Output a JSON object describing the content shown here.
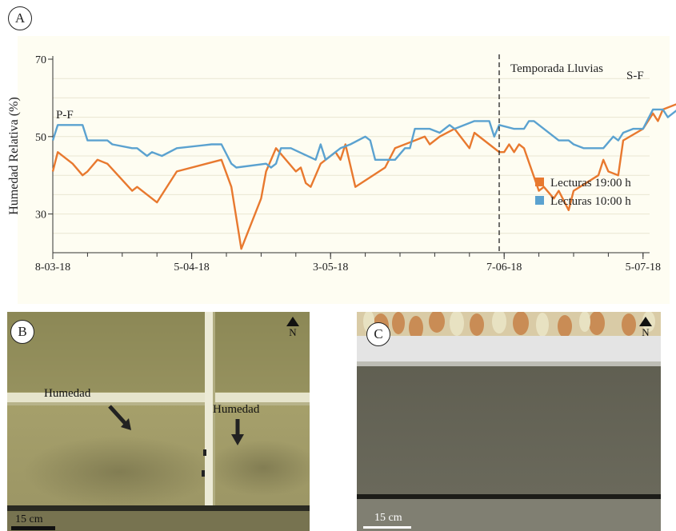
{
  "panels": {
    "a": "A",
    "b": "B",
    "c": "C"
  },
  "chart_data": {
    "type": "line",
    "title": "",
    "ylabel": "Humedad Relativa (%)",
    "xlabel": "",
    "ylim": [
      20,
      70
    ],
    "yticks": [
      30,
      50,
      70
    ],
    "x_start": "2018-03-08",
    "x_end": "2018-07-22",
    "xticks": [
      {
        "date": "2018-03-08",
        "label": "8-03-18"
      },
      {
        "date": "2018-04-05",
        "label": "5-04-18"
      },
      {
        "date": "2018-05-03",
        "label": "3-05-18"
      },
      {
        "date": "2018-06-07",
        "label": "7-06-18"
      },
      {
        "date": "2018-07-05",
        "label": "5-07-18"
      }
    ],
    "grid": "horizontal",
    "legend_position": "right",
    "annotations": {
      "season_label": "Temporada Lluvias",
      "season_date": "2018-06-06",
      "start_label": "P-F",
      "end_label": "S-F"
    },
    "series": [
      {
        "name": "Lecturas 19:00 h",
        "color": "#E8792F",
        "points": [
          [
            "2018-03-08",
            41
          ],
          [
            "2018-03-09",
            46
          ],
          [
            "2018-03-12",
            43
          ],
          [
            "2018-03-14",
            40
          ],
          [
            "2018-03-15",
            41
          ],
          [
            "2018-03-17",
            44
          ],
          [
            "2018-03-19",
            43
          ],
          [
            "2018-03-24",
            36
          ],
          [
            "2018-03-25",
            37
          ],
          [
            "2018-03-29",
            33
          ],
          [
            "2018-04-02",
            41
          ],
          [
            "2018-04-11",
            44
          ],
          [
            "2018-04-13",
            37
          ],
          [
            "2018-04-15",
            21
          ],
          [
            "2018-04-19",
            34
          ],
          [
            "2018-04-20",
            41
          ],
          [
            "2018-04-22",
            47
          ],
          [
            "2018-04-26",
            41
          ],
          [
            "2018-04-27",
            42
          ],
          [
            "2018-04-28",
            38
          ],
          [
            "2018-04-29",
            37
          ],
          [
            "2018-05-01",
            43
          ],
          [
            "2018-05-04",
            46
          ],
          [
            "2018-05-05",
            44
          ],
          [
            "2018-05-06",
            48
          ],
          [
            "2018-05-08",
            37
          ],
          [
            "2018-05-14",
            42
          ],
          [
            "2018-05-16",
            47
          ],
          [
            "2018-05-20",
            49
          ],
          [
            "2018-05-22",
            50
          ],
          [
            "2018-05-23",
            48
          ],
          [
            "2018-05-25",
            50
          ],
          [
            "2018-05-28",
            52
          ],
          [
            "2018-05-31",
            47
          ],
          [
            "2018-06-01",
            51
          ],
          [
            "2018-06-04",
            48
          ],
          [
            "2018-06-06",
            46
          ],
          [
            "2018-06-07",
            46
          ],
          [
            "2018-06-08",
            48
          ],
          [
            "2018-06-09",
            46
          ],
          [
            "2018-06-10",
            48
          ],
          [
            "2018-06-11",
            47
          ],
          [
            "2018-06-14",
            36
          ],
          [
            "2018-06-15",
            37
          ],
          [
            "2018-06-17",
            34
          ],
          [
            "2018-06-18",
            36
          ],
          [
            "2018-06-20",
            31
          ],
          [
            "2018-06-21",
            36
          ],
          [
            "2018-06-26",
            40
          ],
          [
            "2018-06-27",
            44
          ],
          [
            "2018-06-28",
            41
          ],
          [
            "2018-06-30",
            40
          ],
          [
            "2018-07-01",
            49
          ],
          [
            "2018-07-05",
            52
          ],
          [
            "2018-07-07",
            56
          ],
          [
            "2018-07-08",
            54
          ],
          [
            "2018-07-09",
            57
          ],
          [
            "2018-07-13",
            59
          ],
          [
            "2018-07-15",
            55
          ],
          [
            "2018-07-16",
            56
          ],
          [
            "2018-07-17",
            52
          ],
          [
            "2018-07-21",
            57
          ],
          [
            "2018-07-22",
            61
          ],
          [
            "2018-07-24",
            57
          ],
          [
            "2018-07-26",
            58
          ],
          [
            "2018-07-30",
            52
          ],
          [
            "2018-07-31",
            59
          ],
          [
            "2018-08-01",
            53
          ],
          [
            "2018-08-05",
            60
          ],
          [
            "2018-08-06",
            60
          ],
          [
            "2018-08-08",
            57
          ],
          [
            "2018-08-10",
            59
          ],
          [
            "2018-08-12",
            61
          ],
          [
            "2018-08-13",
            57
          ],
          [
            "2018-08-18",
            57
          ]
        ]
      },
      {
        "name": "Lecturas 10:00 h",
        "color": "#5BA2D0",
        "points": [
          [
            "2018-03-08",
            49
          ],
          [
            "2018-03-09",
            53
          ],
          [
            "2018-03-14",
            53
          ],
          [
            "2018-03-15",
            49
          ],
          [
            "2018-03-19",
            49
          ],
          [
            "2018-03-20",
            48
          ],
          [
            "2018-03-24",
            47
          ],
          [
            "2018-03-25",
            47
          ],
          [
            "2018-03-27",
            45
          ],
          [
            "2018-03-28",
            46
          ],
          [
            "2018-03-30",
            45
          ],
          [
            "2018-04-02",
            47
          ],
          [
            "2018-04-09",
            48
          ],
          [
            "2018-04-11",
            48
          ],
          [
            "2018-04-13",
            43
          ],
          [
            "2018-04-14",
            42
          ],
          [
            "2018-04-20",
            43
          ],
          [
            "2018-04-21",
            42
          ],
          [
            "2018-04-22",
            43
          ],
          [
            "2018-04-23",
            47
          ],
          [
            "2018-04-25",
            47
          ],
          [
            "2018-04-30",
            44
          ],
          [
            "2018-05-01",
            48
          ],
          [
            "2018-05-02",
            44
          ],
          [
            "2018-05-05",
            47
          ],
          [
            "2018-05-07",
            48
          ],
          [
            "2018-05-10",
            50
          ],
          [
            "2018-05-11",
            49
          ],
          [
            "2018-05-12",
            44
          ],
          [
            "2018-05-16",
            44
          ],
          [
            "2018-05-18",
            47
          ],
          [
            "2018-05-19",
            47
          ],
          [
            "2018-05-20",
            52
          ],
          [
            "2018-05-23",
            52
          ],
          [
            "2018-05-25",
            51
          ],
          [
            "2018-05-27",
            53
          ],
          [
            "2018-05-28",
            52
          ],
          [
            "2018-05-30",
            53
          ],
          [
            "2018-06-01",
            54
          ],
          [
            "2018-06-04",
            54
          ],
          [
            "2018-06-05",
            50
          ],
          [
            "2018-06-06",
            53
          ],
          [
            "2018-06-09",
            52
          ],
          [
            "2018-06-11",
            52
          ],
          [
            "2018-06-12",
            54
          ],
          [
            "2018-06-13",
            54
          ],
          [
            "2018-06-18",
            49
          ],
          [
            "2018-06-20",
            49
          ],
          [
            "2018-06-21",
            48
          ],
          [
            "2018-06-23",
            47
          ],
          [
            "2018-06-27",
            47
          ],
          [
            "2018-06-29",
            50
          ],
          [
            "2018-06-30",
            49
          ],
          [
            "2018-07-01",
            51
          ],
          [
            "2018-07-03",
            52
          ],
          [
            "2018-07-05",
            52
          ],
          [
            "2018-07-07",
            57
          ],
          [
            "2018-07-09",
            57
          ],
          [
            "2018-07-10",
            55
          ],
          [
            "2018-07-12",
            57
          ],
          [
            "2018-07-16",
            58
          ],
          [
            "2018-07-17",
            57
          ],
          [
            "2018-07-19",
            59
          ],
          [
            "2018-07-22",
            60
          ],
          [
            "2018-07-26",
            61
          ],
          [
            "2018-07-28",
            58
          ],
          [
            "2018-07-29",
            58
          ],
          [
            "2018-08-01",
            56
          ],
          [
            "2018-08-03",
            59
          ],
          [
            "2018-08-04",
            60
          ],
          [
            "2018-08-06",
            62
          ],
          [
            "2018-08-07",
            61
          ],
          [
            "2018-08-08",
            61
          ],
          [
            "2018-08-10",
            60
          ],
          [
            "2018-08-12",
            61
          ],
          [
            "2018-08-14",
            62
          ],
          [
            "2018-08-15",
            61
          ],
          [
            "2018-08-17",
            61
          ],
          [
            "2018-08-18",
            60
          ]
        ]
      }
    ]
  },
  "photo_b": {
    "label_left": "Humedad",
    "label_right": "Humedad",
    "north": "N",
    "scale": "15 cm"
  },
  "photo_c": {
    "north": "N",
    "scale": "15 cm"
  }
}
